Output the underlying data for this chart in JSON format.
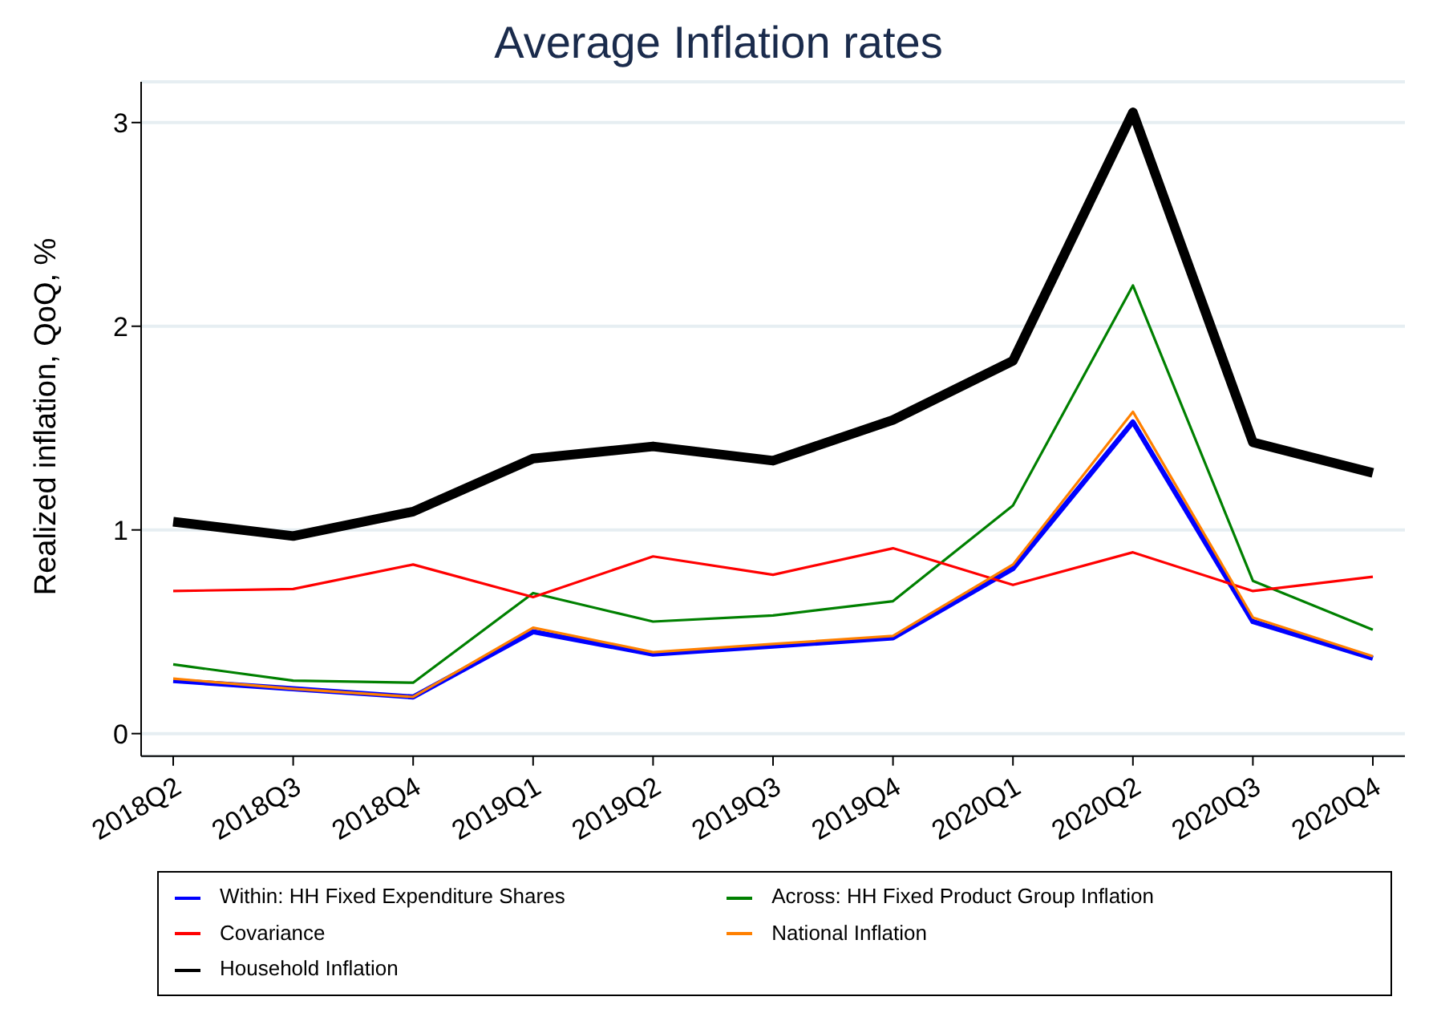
{
  "chart_data": {
    "type": "line",
    "title": "Average Inflation rates",
    "ylabel": "Realized inflation, QoQ, %",
    "categories": [
      "2018Q2",
      "2018Q3",
      "2018Q4",
      "2019Q1",
      "2019Q2",
      "2019Q3",
      "2019Q4",
      "2020Q1",
      "2020Q2",
      "2020Q3",
      "2020Q4"
    ],
    "series": [
      {
        "name": "Within: HH Fixed Expenditure Shares",
        "color": "#0000ff",
        "values": [
          0.26,
          0.22,
          0.18,
          0.5,
          0.39,
          0.43,
          0.47,
          0.81,
          1.53,
          0.55,
          0.37
        ]
      },
      {
        "name": "Across: HH Fixed Product Group Inflation",
        "color": "#008000",
        "values": [
          0.34,
          0.26,
          0.25,
          0.69,
          0.55,
          0.58,
          0.65,
          1.12,
          2.2,
          0.75,
          0.51
        ]
      },
      {
        "name": "Covariance",
        "color": "#ff0000",
        "values": [
          0.7,
          0.71,
          0.83,
          0.67,
          0.87,
          0.78,
          0.91,
          0.73,
          0.89,
          0.7,
          0.77
        ]
      },
      {
        "name": "National Inflation",
        "color": "#ff8000",
        "values": [
          0.27,
          0.22,
          0.18,
          0.52,
          0.4,
          0.44,
          0.48,
          0.83,
          1.58,
          0.57,
          0.38
        ]
      },
      {
        "name": "Household Inflation",
        "color": "#000000",
        "values": [
          1.04,
          0.97,
          1.09,
          1.35,
          1.41,
          1.34,
          1.54,
          1.83,
          3.05,
          1.43,
          1.28
        ]
      }
    ],
    "ylim": [
      -0.11,
      3.2
    ],
    "yticks": [
      0,
      1,
      2,
      3
    ],
    "grid": "y",
    "legend": "bottom",
    "marker": "none",
    "line_style": "solid"
  }
}
